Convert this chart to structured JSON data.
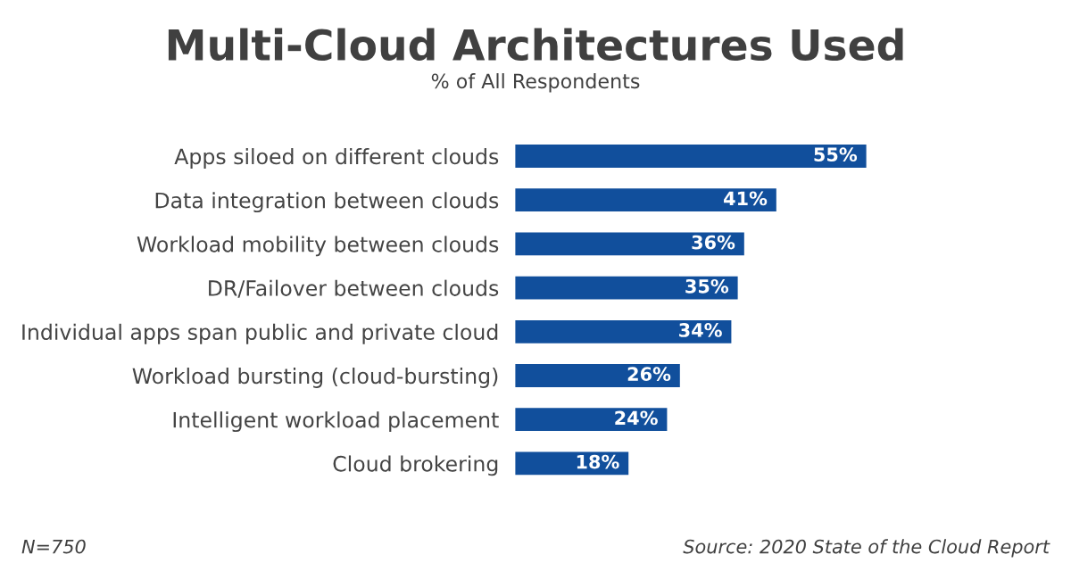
{
  "chart_data": {
    "type": "bar",
    "orientation": "horizontal",
    "title": "Multi-Cloud Architectures Used",
    "subtitle": "% of All Respondents",
    "categories": [
      "Apps siloed on different clouds",
      "Data integration between clouds",
      "Workload mobility between clouds",
      "DR/Failover between clouds",
      "Individual apps span public and private cloud",
      "Workload bursting (cloud-bursting)",
      "Intelligent workload placement",
      "Cloud brokering"
    ],
    "values": [
      55,
      41,
      36,
      35,
      34,
      26,
      24,
      18
    ],
    "value_labels": [
      "55%",
      "41%",
      "36%",
      "35%",
      "34%",
      "26%",
      "24%",
      "18%"
    ],
    "color": "#114f9c",
    "grid": false,
    "legend": false,
    "tick_labels": "y",
    "annotations": [
      "N=750",
      "Source: 2020 State of the Cloud Report"
    ]
  }
}
